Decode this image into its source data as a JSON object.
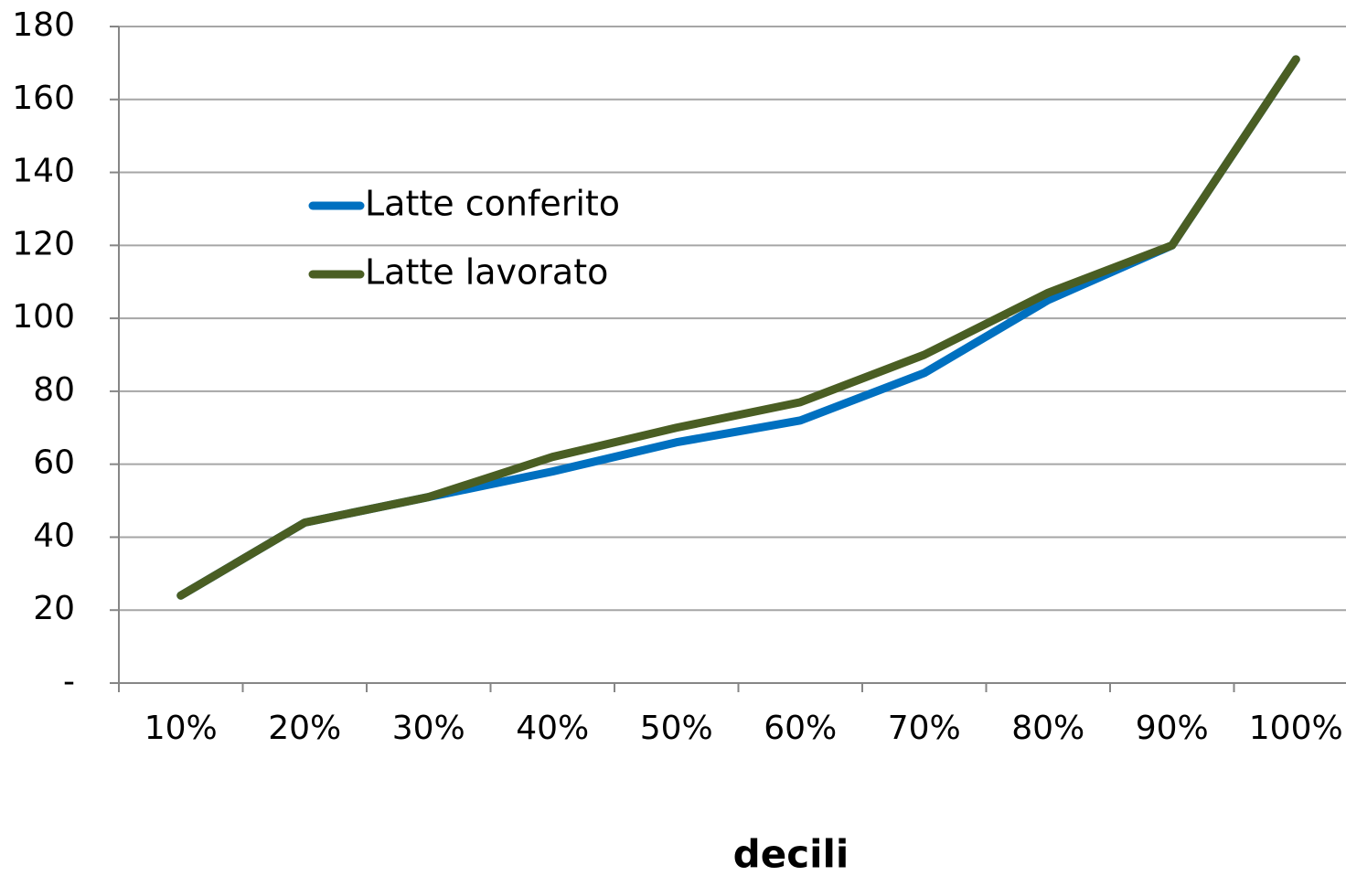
{
  "chart_data": {
    "type": "line",
    "x_label": "decili",
    "categories": [
      "10%",
      "20%",
      "30%",
      "40%",
      "50%",
      "60%",
      "70%",
      "80%",
      "90%",
      "100%"
    ],
    "series": [
      {
        "name": "Latte conferito",
        "color": "#0070c0",
        "values": [
          24,
          44,
          51,
          58,
          66,
          72,
          85,
          105,
          120,
          171
        ]
      },
      {
        "name": "Latte lavorato",
        "color": "#4a5e23",
        "values": [
          24,
          44,
          51,
          62,
          70,
          77,
          90,
          107,
          120,
          171
        ]
      }
    ],
    "ylim": [
      0,
      180
    ],
    "yticks": [
      {
        "value": 0,
        "label": "-"
      },
      20,
      40,
      60,
      80,
      100,
      120,
      140,
      160,
      180
    ],
    "grid": true
  }
}
